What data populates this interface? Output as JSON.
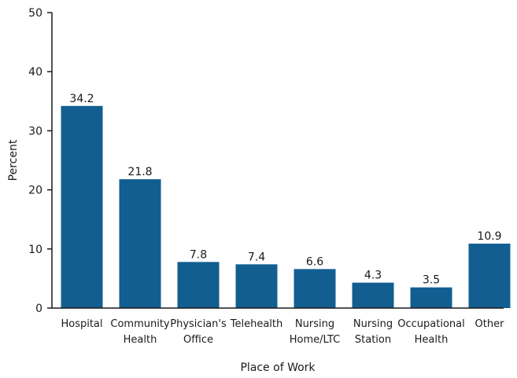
{
  "chart_data": {
    "type": "bar",
    "title": "",
    "xlabel": "Place of Work",
    "ylabel": "Percent",
    "ylim": [
      0,
      50
    ],
    "yticks": [
      0,
      10,
      20,
      30,
      40,
      50
    ],
    "grid": false,
    "categories": [
      [
        "Hospital"
      ],
      [
        "Community",
        "Health"
      ],
      [
        "Physician's",
        "Office"
      ],
      [
        "Telehealth"
      ],
      [
        "Nursing",
        "Home/LTC"
      ],
      [
        "Nursing",
        "Station"
      ],
      [
        "Occupational",
        "Health"
      ],
      [
        "Other"
      ]
    ],
    "values": [
      34.2,
      21.8,
      7.8,
      7.4,
      6.6,
      4.3,
      3.5,
      10.9
    ],
    "data_labels": [
      "34.2",
      "21.8",
      "7.8",
      "7.4",
      "6.6",
      "4.3",
      "3.5",
      "10.9"
    ],
    "bar_color": "#135e91",
    "axis_color": "#1a1a1a"
  }
}
